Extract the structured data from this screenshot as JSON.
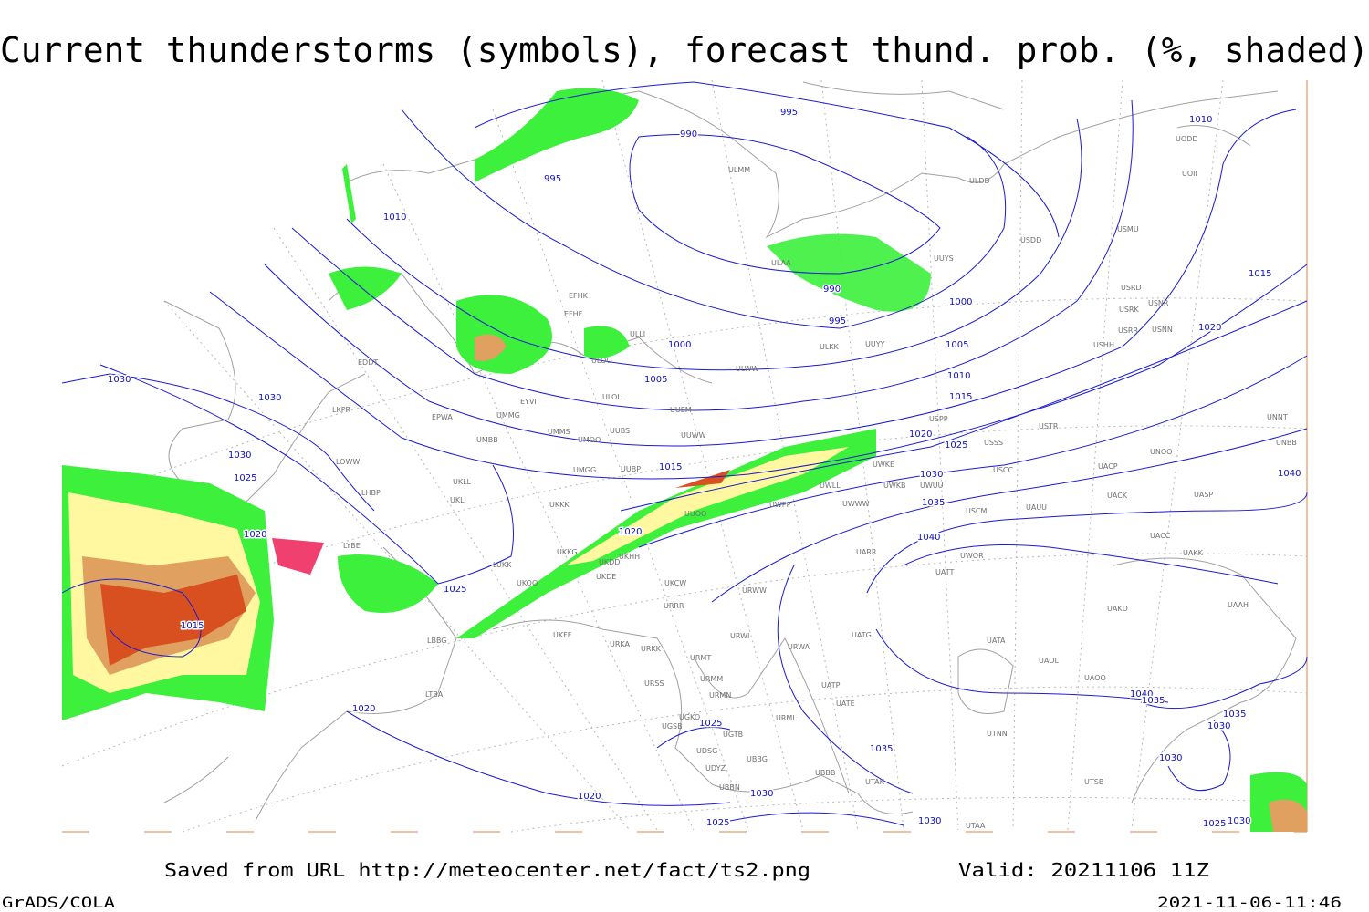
{
  "header": {
    "title": "Current thunderstorms (symbols), forecast thund. prob. (%, shaded)"
  },
  "footer": {
    "source": "Saved from URL http://meteocenter.net/fact/ts2.png",
    "valid": "Valid: 20211106 11Z",
    "software": "GrADS/COLA",
    "timestamp": "2021-11-06-11:46"
  },
  "isobar_labels": [
    "995",
    "990",
    "995",
    "1010",
    "990",
    "995",
    "1000",
    "1005",
    "1000",
    "1005",
    "1010",
    "1015",
    "1020",
    "1015",
    "1010",
    "1020",
    "1025",
    "1030",
    "1035",
    "1040",
    "1040",
    "1030",
    "1030",
    "1030",
    "1025",
    "1020",
    "1015",
    "1025",
    "1015",
    "1020",
    "1025",
    "1020",
    "1020",
    "1030",
    "1025",
    "1030",
    "1035",
    "1040",
    "1035",
    "1035",
    "1030",
    "1030",
    "1025",
    "1030"
  ],
  "stations": [
    "ULDD",
    "USDD",
    "USMU",
    "UOII",
    "UODD",
    "ULAA",
    "ULMM",
    "EFHK",
    "EFHF",
    "ULLI",
    "ULOO",
    "ULOL",
    "ULWW",
    "ULKK",
    "UUYY",
    "UUYS",
    "USRD",
    "USRK",
    "USNR",
    "USRR",
    "USNN",
    "USHH",
    "EYVI",
    "UMMG",
    "UMMS",
    "UMOO",
    "UUBS",
    "UUEM",
    "UUWW",
    "UMBB",
    "EPWA",
    "LKPR",
    "EDDT",
    "LOWW",
    "LHBP",
    "UKLL",
    "UKLI",
    "UKKK",
    "UMGG",
    "UUBP",
    "UUOO",
    "UWPP",
    "UWWW",
    "UWLL",
    "UWKE",
    "UWKB",
    "UWUU",
    "USPP",
    "USSS",
    "USTR",
    "USCC",
    "USCM",
    "UAUU",
    "UACP",
    "UNOO",
    "UNNT",
    "UNBB",
    "UACK",
    "UASP",
    "UACC",
    "UAKK",
    "UARR",
    "UWOR",
    "UATT",
    "UAKD",
    "UAAH",
    "UATG",
    "UATA",
    "UAOL",
    "UAOO",
    "UATP",
    "UATE",
    "UTNN",
    "URWA",
    "URWI",
    "URRR",
    "UKCW",
    "URWW",
    "URSS",
    "URMM",
    "URMT",
    "URMN",
    "URML",
    "UGKO",
    "UGSB",
    "UGTB",
    "UDSG",
    "UBBG",
    "UBBB",
    "UDYZ",
    "UBBN",
    "UTAK",
    "UTAA",
    "UTSB",
    "LTBA",
    "LBBG",
    "UKFF",
    "URKA",
    "URKK",
    "UKOO",
    "UKDD",
    "UKHH",
    "UKDE",
    "UKKG",
    "LUKK",
    "LYBE"
  ]
}
